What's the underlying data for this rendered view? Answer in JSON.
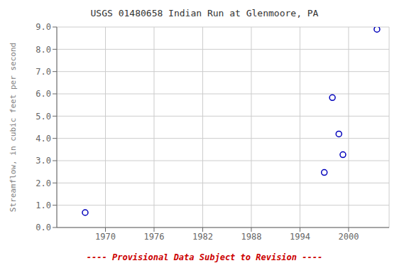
{
  "chart_data": {
    "type": "scatter",
    "title": "USGS 01480658 Indian Run at Glenmoore, PA",
    "ylabel": "Streamflow, in cubic feet per second",
    "x": [
      1967.5,
      1997.0,
      1998.0,
      1998.8,
      1999.3,
      2003.5
    ],
    "values": [
      0.67,
      2.47,
      5.83,
      4.2,
      3.27,
      8.9
    ],
    "color": "#0000bb",
    "marker": "circle",
    "xlim": [
      1964,
      2005
    ],
    "ylim": [
      0.0,
      9.0
    ],
    "xticks": [
      1970,
      1976,
      1982,
      1988,
      1994,
      2000
    ],
    "yticks": [
      {
        "value": 0.0,
        "label": "0.0"
      },
      {
        "value": 1.0,
        "label": "1.0"
      },
      {
        "value": 2.0,
        "label": "2.0"
      },
      {
        "value": 3.0,
        "label": "3.0"
      },
      {
        "value": 4.0,
        "label": "4.0"
      },
      {
        "value": 5.0,
        "label": "5.0"
      },
      {
        "value": 6.0,
        "label": "6.0"
      },
      {
        "value": 7.0,
        "label": "7.0"
      },
      {
        "value": 8.0,
        "label": "8.0"
      },
      {
        "value": 9.0,
        "label": "9.0"
      }
    ],
    "grid": true,
    "annotations": [
      {
        "text": "---- Provisional Data Subject to Revision ----",
        "color": "#cc0000"
      }
    ]
  }
}
